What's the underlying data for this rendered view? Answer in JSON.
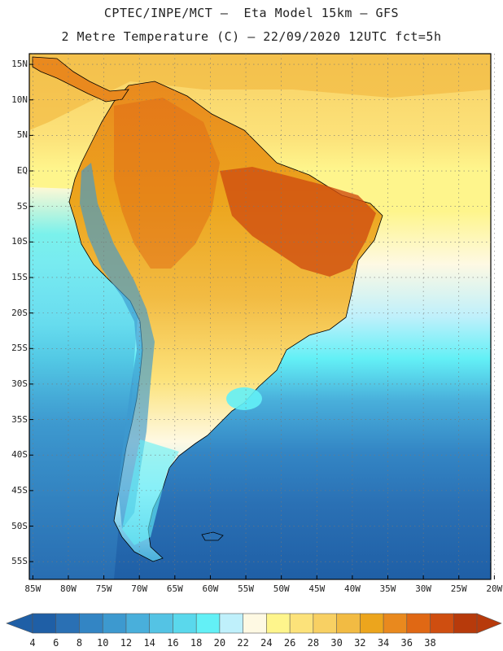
{
  "title": {
    "line1": "CPTEC/INPE/MCT –  Eta Model 15km – GFS",
    "line2": "2 Metre Temperature (C) – 22/09/2020 12UTC fct=5h"
  },
  "map": {
    "lat_labels": [
      "15N",
      "10N",
      "5N",
      "EQ",
      "5S",
      "10S",
      "15S",
      "20S",
      "25S",
      "30S",
      "35S",
      "40S",
      "45S",
      "50S",
      "55S"
    ],
    "lon_labels": [
      "85W",
      "80W",
      "75W",
      "70W",
      "65W",
      "60W",
      "55W",
      "50W",
      "45W",
      "40W",
      "35W",
      "30W",
      "25W",
      "20W"
    ],
    "lat_values": [
      15,
      10,
      5,
      0,
      -5,
      -10,
      -15,
      -20,
      -25,
      -30,
      -35,
      -40,
      -45,
      -50,
      -55
    ],
    "lon_values": [
      -85,
      -80,
      -75,
      -70,
      -65,
      -60,
      -55,
      -50,
      -45,
      -40,
      -35,
      -30,
      -25,
      -20
    ],
    "extent": {
      "lon_min": -85.5,
      "lon_max": -20.5,
      "lat_min": -57.5,
      "lat_max": 16.5
    },
    "grid": "dotted",
    "projection": "cylindrical equidistant"
  },
  "colorbar": {
    "labels": [
      "4",
      "6",
      "8",
      "10",
      "12",
      "14",
      "16",
      "18",
      "20",
      "22",
      "24",
      "26",
      "28",
      "30",
      "32",
      "34",
      "36",
      "38"
    ],
    "colors": [
      "#1f5fa6",
      "#2a70b4",
      "#3385c4",
      "#3d99cf",
      "#49afdb",
      "#54c3e4",
      "#5ad8ec",
      "#63f0f6",
      "#bff0fb",
      "#fef9e3",
      "#fef58c",
      "#fce27a",
      "#f8d063",
      "#f2bb43",
      "#eca51d",
      "#e9891e",
      "#e06814",
      "#cf4e10",
      "#b73a0b"
    ]
  }
}
